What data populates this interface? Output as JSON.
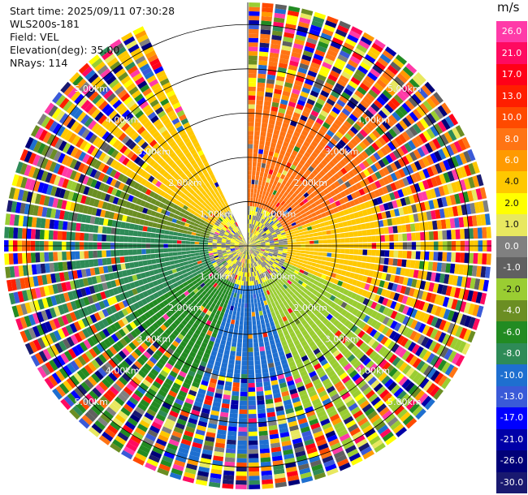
{
  "header": {
    "start_time": "Start time: 2025/09/11 07:30:28",
    "station": "WLS200s-181",
    "field": "Field: VEL",
    "elevation": "Elevation(deg): 35.00",
    "nrays": "NRays: 114"
  },
  "chart_data": {
    "type": "heatmap",
    "projection": "polar-ppi",
    "range_unit": "km",
    "max_range_km": 5.5,
    "ring_labels": [
      "1.00km",
      "2.00km",
      "3.00km",
      "4.00km",
      "5.00km"
    ],
    "ring_label_bearings_deg": [
      45,
      135,
      225,
      315
    ],
    "rays": 114,
    "gap_azimuth_deg": [
      -24,
      -1
    ],
    "colorbar": {
      "unit": "m/s",
      "ticks": [
        "26.0",
        "21.0",
        "17.0",
        "13.0",
        "10.0",
        "8.0",
        "6.0",
        "4.0",
        "2.0",
        "1.0",
        "0.0",
        "-1.0",
        "-2.0",
        "-4.0",
        "-6.0",
        "-8.0",
        "-10.0",
        "-13.0",
        "-17.0",
        "-21.0",
        "-26.0",
        "-30.0"
      ],
      "colors": [
        "#ff3aa8",
        "#ff0a60",
        "#ff0018",
        "#ff1e00",
        "#ff4a00",
        "#ff7414",
        "#ff9a00",
        "#ffc800",
        "#ffff00",
        "#e8e860",
        "#808080",
        "#606060",
        "#9acd32",
        "#6b8e23",
        "#228b22",
        "#2e8b57",
        "#1e6fd0",
        "#3a5ad8",
        "#0000ff",
        "#0000a8",
        "#000078",
        "#191970"
      ],
      "tick_text_colors": [
        "#ffffff",
        "#ffffff",
        "#ffffff",
        "#ffffff",
        "#ffffff",
        "#ffffff",
        "#ffffff",
        "#111111",
        "#111111",
        "#111111",
        "#ffffff",
        "#ffffff",
        "#111111",
        "#ffffff",
        "#ffffff",
        "#ffffff",
        "#ffffff",
        "#ffffff",
        "#ffffff",
        "#ffffff",
        "#ffffff",
        "#ffffff"
      ]
    },
    "approx_field": {
      "inner_core_max_km": 0.9,
      "inner_core_value": "gray/yellow mixed near 0 m/s",
      "clean_region_max_km": 3.0,
      "noise_region": "multicolour random noise beyond ~3 km",
      "sectors": [
        {
          "az_from": -60,
          "az_to": -25,
          "r_from": 0.9,
          "r_to": 3.0,
          "value": 4.0
        },
        {
          "az_from": 0,
          "az_to": 70,
          "r_from": 0.3,
          "r_to": 3.0,
          "value": 8.0
        },
        {
          "az_from": 70,
          "az_to": 115,
          "r_from": 0.9,
          "r_to": 3.0,
          "value": 4.0
        },
        {
          "az_from": 115,
          "az_to": 160,
          "r_from": 0.9,
          "r_to": 3.0,
          "value": -2.0
        },
        {
          "az_from": 160,
          "az_to": 200,
          "r_from": 0.9,
          "r_to": 3.0,
          "value": -10.0
        },
        {
          "az_from": 200,
          "az_to": 240,
          "r_from": 0.9,
          "r_to": 3.0,
          "value": -6.0
        },
        {
          "az_from": 240,
          "az_to": 280,
          "r_from": 0.9,
          "r_to": 3.0,
          "value": -8.0
        },
        {
          "az_from": 280,
          "az_to": 300,
          "r_from": 0.9,
          "r_to": 3.0,
          "value": -4.0
        }
      ]
    }
  }
}
